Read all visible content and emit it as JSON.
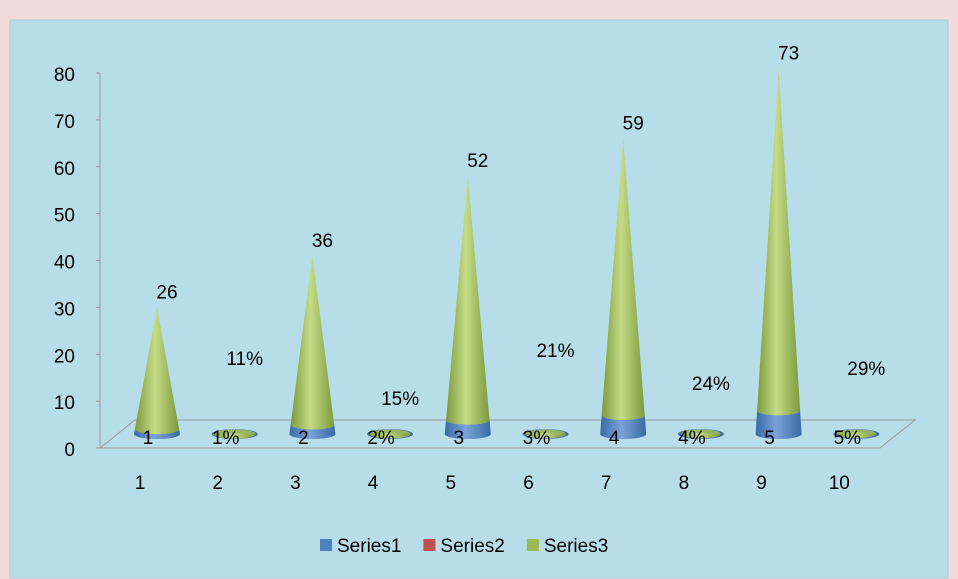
{
  "chart_data": {
    "type": "cone",
    "categories": [
      "1",
      "2",
      "3",
      "4",
      "5",
      "6",
      "7",
      "8",
      "9",
      "10"
    ],
    "series": [
      {
        "name": "Series1",
        "color": "#4f81bd",
        "values": [
          1,
          0.01,
          2,
          0.02,
          3,
          0.03,
          4,
          0.04,
          5,
          0.05
        ],
        "value_labels": [
          "1",
          "1%",
          "2",
          "2%",
          "3",
          "3%",
          "4",
          "4%",
          "5",
          "5%"
        ]
      },
      {
        "name": "Series2",
        "color": "#c0504d",
        "values": [
          null,
          null,
          null,
          null,
          null,
          null,
          null,
          null,
          null,
          null
        ]
      },
      {
        "name": "Series3",
        "color": "#9bbb59",
        "values": [
          26,
          0.11,
          36,
          0.15,
          52,
          0.21,
          59,
          0.24,
          73,
          0.29
        ],
        "value_labels": [
          "26",
          "11%",
          "36",
          "15%",
          "52",
          "21%",
          "59",
          "24%",
          "73",
          "29%"
        ]
      }
    ],
    "stacked": true,
    "ylim": [
      0,
      80
    ],
    "yticks": [
      0,
      10,
      20,
      30,
      40,
      50,
      60,
      70,
      80
    ],
    "legend": "bottom"
  }
}
